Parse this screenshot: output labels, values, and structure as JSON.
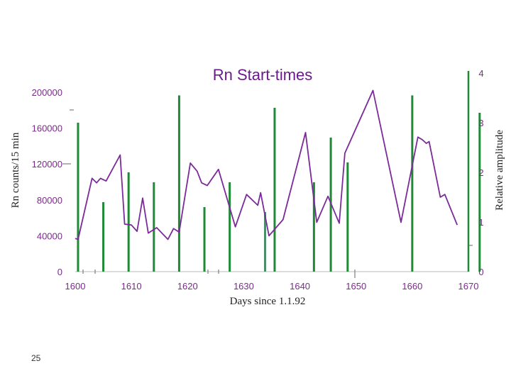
{
  "chart_data": {
    "type": "line",
    "title": "Rn Start-times",
    "xlabel": "Days since 1.1.92",
    "ylabel_left": "Rn counts/15 min",
    "ylabel_right": "Relative amplitude",
    "xlim": [
      1600,
      1670
    ],
    "ylim_left": [
      0,
      200000
    ],
    "ylim_right": [
      0,
      4
    ],
    "x_ticks": [
      "1600",
      "1610",
      "1620",
      "1630",
      "1640",
      "1650",
      "1660",
      "1670"
    ],
    "y_ticks_left": [
      "0",
      "40000",
      "80000",
      "120000",
      "160000",
      "200000"
    ],
    "y_ticks_right": [
      "0",
      "1",
      "2",
      "3",
      "4"
    ],
    "colors": {
      "line": "#7b2a9a",
      "bars": "#1f8a35",
      "bar_muted": "#4a8f6a"
    },
    "series": [
      {
        "type": "line",
        "axis": "left",
        "x": [
          1600,
          1600.5,
          1603,
          1603.8,
          1604.5,
          1605.5,
          1608,
          1608.8,
          1610,
          1611,
          1612,
          1613,
          1614.5,
          1616.5,
          1617.5,
          1618.5,
          1620.5,
          1621.7,
          1622.5,
          1623.5,
          1625.5,
          1628.5,
          1630.5,
          1632.5,
          1633,
          1634.5,
          1637,
          1641,
          1643,
          1645,
          1647,
          1648,
          1653,
          1658,
          1661,
          1661.8,
          1662.5,
          1663,
          1665,
          1665.8,
          1668
        ],
        "y": [
          37000,
          36000,
          104000,
          99000,
          104000,
          101000,
          130000,
          53000,
          52000,
          45000,
          82000,
          43000,
          49000,
          36000,
          48000,
          44000,
          121000,
          112000,
          99000,
          96000,
          114000,
          50000,
          86000,
          74000,
          88000,
          40000,
          58000,
          155000,
          55000,
          84000,
          54000,
          132000,
          202000,
          55000,
          150000,
          147000,
          143000,
          145000,
          83000,
          86000,
          52000
        ]
      },
      {
        "type": "bar",
        "axis": "right",
        "x": [
          1600.5,
          1605,
          1609.5,
          1614,
          1618.5,
          1623,
          1627.5,
          1633.8,
          1635.5,
          1642.5,
          1645.5,
          1648.5,
          1660,
          1672
        ],
        "values": [
          3.0,
          1.4,
          2.0,
          1.8,
          3.55,
          1.3,
          1.8,
          1.2,
          3.3,
          1.8,
          2.7,
          2.2,
          3.55,
          3.2
        ]
      }
    ],
    "footer": {
      "page_number": "25"
    }
  }
}
